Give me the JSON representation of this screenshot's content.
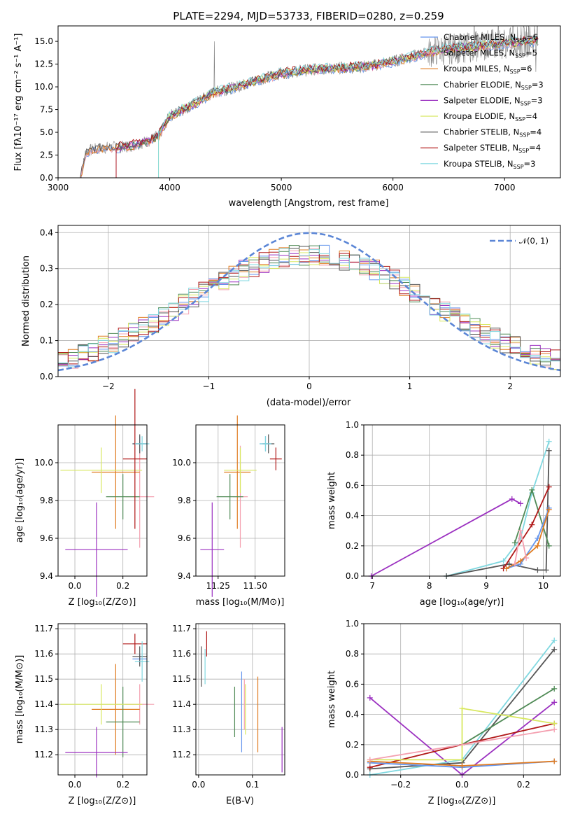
{
  "colors": {
    "Chabrier MILES": "#6495ed",
    "Salpeter MILES": "#f4a0b0",
    "Kroupa MILES": "#e07b20",
    "Chabrier ELODIE": "#4f8a55",
    "Salpeter ELODIE": "#9b30c0",
    "Kroupa ELODIE": "#d8e860",
    "Chabrier STELIB": "#555555",
    "Salpeter STELIB": "#b01818",
    "Kroupa STELIB": "#80d8e0",
    "normal": "#5b86d6"
  },
  "chart_data": [
    {
      "type": "line",
      "title": "PLATE=2294, MJD=53733, FIBERID=0280, z=0.259",
      "xlabel": "wavelength [Angstrom, rest frame]",
      "ylabel": "Flux [fλ10⁻¹⁷ erg cm⁻² s⁻¹ A⁻¹]",
      "xlim": [
        3000,
        7500
      ],
      "ylim": [
        0,
        16.7
      ],
      "xticks": [
        "3000",
        "4000",
        "5000",
        "6000",
        "7000"
      ],
      "yticks": [
        "0.0",
        "2.5",
        "5.0",
        "7.5",
        "10.0",
        "12.5",
        "15.0"
      ],
      "legend_position": "upper right",
      "legend": [
        {
          "name": "Chabrier MILES, N_SSP=6",
          "label": "Chabrier MILES, N",
          "sub": "SSP",
          "tail": "=6"
        },
        {
          "name": "Salpeter MILES, N_SSP=5",
          "label": "Salpeter MILES, N",
          "sub": "SSP",
          "tail": "=5"
        },
        {
          "name": "Kroupa MILES, N_SSP=6",
          "label": "Kroupa MILES, N",
          "sub": "SSP",
          "tail": "=6"
        },
        {
          "name": "Chabrier ELODIE, N_SSP=3",
          "label": "Chabrier ELODIE, N",
          "sub": "SSP",
          "tail": "=3"
        },
        {
          "name": "Salpeter ELODIE, N_SSP=3",
          "label": "Salpeter ELODIE, N",
          "sub": "SSP",
          "tail": "=3"
        },
        {
          "name": "Kroupa ELODIE, N_SSP=4",
          "label": "Kroupa ELODIE, N",
          "sub": "SSP",
          "tail": "=4"
        },
        {
          "name": "Chabrier STELIB, N_SSP=4",
          "label": "Chabrier STELIB, N",
          "sub": "SSP",
          "tail": "=4"
        },
        {
          "name": "Salpeter STELIB, N_SSP=4",
          "label": "Salpeter STELIB, N",
          "sub": "SSP",
          "tail": "=4"
        },
        {
          "name": "Kroupa STELIB, N_SSP=3",
          "label": "Kroupa STELIB, N",
          "sub": "SSP",
          "tail": "=3"
        }
      ],
      "continuum": {
        "x": [
          3200,
          3250,
          3400,
          3600,
          3800,
          3900,
          4000,
          4200,
          4400,
          4600,
          4800,
          5000,
          5200,
          5400,
          5600,
          5800,
          6000,
          6200,
          6400,
          6600,
          6800,
          7000,
          7200,
          7300
        ],
        "y": [
          0.0,
          2.9,
          3.3,
          3.4,
          4.0,
          4.6,
          6.8,
          8.0,
          9.4,
          10.0,
          10.8,
          11.5,
          11.8,
          12.0,
          12.1,
          12.3,
          12.8,
          13.4,
          14.0,
          14.3,
          14.5,
          14.8,
          15.0,
          15.1
        ]
      },
      "model_starts": [
        3200,
        3200,
        3200,
        3520,
        3520,
        3900,
        3200,
        3520,
        3900
      ]
    },
    {
      "type": "line",
      "xlabel": "(data-model)/error",
      "ylabel": "Normed distribution",
      "xlim": [
        -2.5,
        2.5
      ],
      "ylim": [
        0,
        0.42
      ],
      "xticks": [
        "−2",
        "−1",
        "0",
        "1",
        "2"
      ],
      "yticks": [
        "0.0",
        "0.1",
        "0.2",
        "0.3",
        "0.4"
      ],
      "legend": [
        "𝒩(0, 1)"
      ],
      "legend_position": "upper right",
      "curve": "standard normal N(0,1)",
      "bin_width": 0.1
    },
    {
      "type": "scatter",
      "xlabel": "Z [log₁₀(Z/Z⊙)]",
      "ylabel": "age  [log₁₀(age/yr)]",
      "xlim": [
        -0.07,
        0.3
      ],
      "ylim": [
        9.4,
        10.2
      ],
      "xticks": [
        "0.0",
        "0.2"
      ],
      "yticks": [
        "9.4",
        "9.6",
        "9.8",
        "10.0"
      ],
      "points": [
        {
          "model": "Chabrier MILES",
          "x": 0.27,
          "y": 10.1,
          "xerr": 0.03,
          "yerr": 0.04
        },
        {
          "model": "Salpeter MILES",
          "x": 0.27,
          "y": 9.82,
          "xerr": 0.06,
          "yerr": 0.27
        },
        {
          "model": "Kroupa MILES",
          "x": 0.17,
          "y": 9.95,
          "xerr": 0.1,
          "yerr": 0.3
        },
        {
          "model": "Chabrier ELODIE",
          "x": 0.2,
          "y": 9.82,
          "xerr": 0.07,
          "yerr": 0.12
        },
        {
          "model": "Salpeter ELODIE",
          "x": 0.09,
          "y": 9.54,
          "xerr": 0.13,
          "yerr": 0.25
        },
        {
          "model": "Kroupa ELODIE",
          "x": 0.11,
          "y": 9.96,
          "xerr": 0.17,
          "yerr": 0.12
        },
        {
          "model": "Chabrier STELIB",
          "x": 0.27,
          "y": 10.1,
          "xerr": 0.03,
          "yerr": 0.05
        },
        {
          "model": "Salpeter STELIB",
          "x": 0.25,
          "y": 10.02,
          "xerr": 0.05,
          "yerr": 0.37
        },
        {
          "model": "Kroupa STELIB",
          "x": 0.28,
          "y": 10.1,
          "xerr": 0.03,
          "yerr": 0.04
        }
      ]
    },
    {
      "type": "scatter",
      "xlabel": "mass [log₁₀(M/M⊙)]",
      "xlim": [
        11.1,
        11.7
      ],
      "ylim": [
        9.4,
        10.2
      ],
      "xticks": [
        "11.25",
        "11.50"
      ],
      "yticks": [
        "9.4",
        "9.6",
        "9.8",
        "10.0"
      ],
      "points": [
        {
          "model": "Chabrier MILES",
          "x": 11.57,
          "y": 10.1,
          "xerr": 0.04,
          "yerr": 0.04
        },
        {
          "model": "Salpeter MILES",
          "x": 11.4,
          "y": 9.82,
          "xerr": 0.05,
          "yerr": 0.27
        },
        {
          "model": "Kroupa MILES",
          "x": 11.38,
          "y": 9.95,
          "xerr": 0.09,
          "yerr": 0.3
        },
        {
          "model": "Chabrier ELODIE",
          "x": 11.33,
          "y": 9.82,
          "xerr": 0.09,
          "yerr": 0.12
        },
        {
          "model": "Salpeter ELODIE",
          "x": 11.21,
          "y": 9.54,
          "xerr": 0.08,
          "yerr": 0.25
        },
        {
          "model": "Kroupa ELODIE",
          "x": 11.4,
          "y": 9.96,
          "xerr": 0.11,
          "yerr": 0.12
        },
        {
          "model": "Chabrier STELIB",
          "x": 11.59,
          "y": 10.1,
          "xerr": 0.04,
          "yerr": 0.05
        },
        {
          "model": "Salpeter STELIB",
          "x": 11.64,
          "y": 10.02,
          "xerr": 0.04,
          "yerr": 0.06
        },
        {
          "model": "Kroupa STELIB",
          "x": 11.57,
          "y": 10.1,
          "xerr": 0.04,
          "yerr": 0.04
        }
      ]
    },
    {
      "type": "line",
      "xlabel": "age  [log₁₀(age/yr)]",
      "ylabel": "mass weight",
      "xlim": [
        6.85,
        10.3
      ],
      "ylim": [
        0,
        1.0
      ],
      "xticks": [
        "7",
        "8",
        "9",
        "10"
      ],
      "yticks": [
        "0.0",
        "0.2",
        "0.4",
        "0.6",
        "0.8",
        "1.0"
      ],
      "series": [
        {
          "model": "Salpeter ELODIE",
          "x": [
            6.98,
            9.45,
            9.6
          ],
          "y": [
            0.0,
            0.51,
            0.48
          ]
        },
        {
          "model": "Kroupa STELIB",
          "x": [
            8.3,
            9.3,
            9.6,
            9.8,
            10.1
          ],
          "y": [
            0.0,
            0.1,
            0.25,
            0.55,
            0.89
          ]
        },
        {
          "model": "Chabrier STELIB",
          "x": [
            8.3,
            9.4,
            9.9,
            10.05,
            10.1
          ],
          "y": [
            0.0,
            0.08,
            0.04,
            0.04,
            0.83
          ]
        },
        {
          "model": "Chabrier ELODIE",
          "x": [
            9.5,
            9.8,
            10.1
          ],
          "y": [
            0.22,
            0.57,
            0.2
          ]
        },
        {
          "model": "Salpeter STELIB",
          "x": [
            9.3,
            9.8,
            10.1
          ],
          "y": [
            0.05,
            0.34,
            0.59
          ]
        },
        {
          "model": "Chabrier MILES",
          "x": [
            9.35,
            9.6,
            9.9,
            10.1
          ],
          "y": [
            0.05,
            0.08,
            0.25,
            0.45
          ]
        },
        {
          "model": "Kroupa MILES",
          "x": [
            9.35,
            9.6,
            9.9,
            10.1
          ],
          "y": [
            0.05,
            0.1,
            0.2,
            0.44
          ]
        },
        {
          "model": "Salpeter MILES",
          "x": [
            9.5,
            9.6,
            9.7
          ],
          "y": [
            0.08,
            0.3,
            0.12
          ]
        }
      ]
    },
    {
      "type": "scatter",
      "xlabel": "Z [log₁₀(Z/Z⊙)]",
      "ylabel": "mass [log₁₀(M/M⊙)]",
      "xlim": [
        -0.07,
        0.3
      ],
      "ylim": [
        11.12,
        11.72
      ],
      "xticks": [
        "0.0",
        "0.2"
      ],
      "yticks": [
        "11.2",
        "11.3",
        "11.4",
        "11.5",
        "11.6",
        "11.7"
      ],
      "points": [
        {
          "model": "Chabrier MILES",
          "x": 0.27,
          "y": 11.58,
          "xerr": 0.03,
          "yerr": 0.02
        },
        {
          "model": "Salpeter MILES",
          "x": 0.27,
          "y": 11.4,
          "xerr": 0.06,
          "yerr": 0.08
        },
        {
          "model": "Kroupa MILES",
          "x": 0.17,
          "y": 11.38,
          "xerr": 0.1,
          "yerr": 0.18
        },
        {
          "model": "Chabrier ELODIE",
          "x": 0.2,
          "y": 11.33,
          "xerr": 0.07,
          "yerr": 0.14
        },
        {
          "model": "Salpeter ELODIE",
          "x": 0.09,
          "y": 11.21,
          "xerr": 0.13,
          "yerr": 0.1
        },
        {
          "model": "Kroupa ELODIE",
          "x": 0.11,
          "y": 11.4,
          "xerr": 0.17,
          "yerr": 0.08
        },
        {
          "model": "Chabrier STELIB",
          "x": 0.27,
          "y": 11.59,
          "xerr": 0.03,
          "yerr": 0.04
        },
        {
          "model": "Salpeter STELIB",
          "x": 0.25,
          "y": 11.64,
          "xerr": 0.05,
          "yerr": 0.04
        },
        {
          "model": "Kroupa STELIB",
          "x": 0.28,
          "y": 11.57,
          "xerr": 0.03,
          "yerr": 0.08
        }
      ]
    },
    {
      "type": "scatter",
      "xlabel": "E(B-V)",
      "xlim": [
        -0.005,
        0.16
      ],
      "ylim": [
        11.12,
        11.72
      ],
      "xticks": [
        "0.0",
        "0.1"
      ],
      "yticks": [
        "11.2",
        "11.3",
        "11.4",
        "11.5",
        "11.6",
        "11.7"
      ],
      "points": [
        {
          "model": "Chabrier MILES",
          "x": 0.08,
          "y": 11.37,
          "yerr": 0.16
        },
        {
          "model": "Salpeter MILES",
          "x": 0.085,
          "y": 11.4,
          "yerr": 0.1
        },
        {
          "model": "Kroupa MILES",
          "x": 0.11,
          "y": 11.36,
          "yerr": 0.15
        },
        {
          "model": "Chabrier ELODIE",
          "x": 0.067,
          "y": 11.37,
          "yerr": 0.1
        },
        {
          "model": "Salpeter ELODIE",
          "x": 0.155,
          "y": 11.22,
          "yerr": 0.09
        },
        {
          "model": "Kroupa ELODIE",
          "x": 0.087,
          "y": 11.38,
          "yerr": 0.1
        },
        {
          "model": "Chabrier STELIB",
          "x": 0.005,
          "y": 11.55,
          "yerr": 0.08
        },
        {
          "model": "Salpeter STELIB",
          "x": 0.015,
          "y": 11.64,
          "yerr": 0.05
        },
        {
          "model": "Kroupa STELIB",
          "x": 0.012,
          "y": 11.55,
          "yerr": 0.07
        }
      ]
    },
    {
      "type": "line",
      "xlabel": "Z [log₁₀(Z/Z⊙)]",
      "ylabel": "mass weight",
      "xlim": [
        -0.32,
        0.32
      ],
      "ylim": [
        0,
        1.0
      ],
      "xticks": [
        "−0.2",
        "0.0",
        "0.2"
      ],
      "yticks": [
        "0.0",
        "0.2",
        "0.4",
        "0.6",
        "0.8",
        "1.0"
      ],
      "series": [
        {
          "model": "Salpeter ELODIE",
          "x": [
            -0.3,
            0.0,
            0.3
          ],
          "y": [
            0.51,
            0.0,
            0.48
          ]
        },
        {
          "model": "Kroupa STELIB",
          "x": [
            -0.3,
            0.0,
            0.3
          ],
          "y": [
            0.0,
            0.1,
            0.89
          ]
        },
        {
          "model": "Chabrier STELIB",
          "x": [
            -0.3,
            0.0,
            0.3
          ],
          "y": [
            0.04,
            0.08,
            0.83
          ]
        },
        {
          "model": "Chabrier ELODIE",
          "x": [
            0.0,
            0.3
          ],
          "y": [
            0.2,
            0.57
          ]
        },
        {
          "model": "Salpeter STELIB",
          "x": [
            -0.3,
            0.0,
            0.3
          ],
          "y": [
            0.05,
            0.2,
            0.34
          ]
        },
        {
          "model": "Kroupa ELODIE",
          "x": [
            -0.3,
            0.0,
            0.0,
            0.3
          ],
          "y": [
            0.1,
            0.1,
            0.44,
            0.34
          ]
        },
        {
          "model": "Chabrier MILES",
          "x": [
            -0.3,
            0.0,
            0.3
          ],
          "y": [
            0.08,
            0.05,
            0.09
          ]
        },
        {
          "model": "Kroupa MILES",
          "x": [
            -0.3,
            0.0,
            0.3
          ],
          "y": [
            0.09,
            0.06,
            0.09
          ]
        },
        {
          "model": "Salpeter MILES",
          "x": [
            -0.3,
            0.3
          ],
          "y": [
            0.1,
            0.3
          ]
        }
      ]
    }
  ]
}
